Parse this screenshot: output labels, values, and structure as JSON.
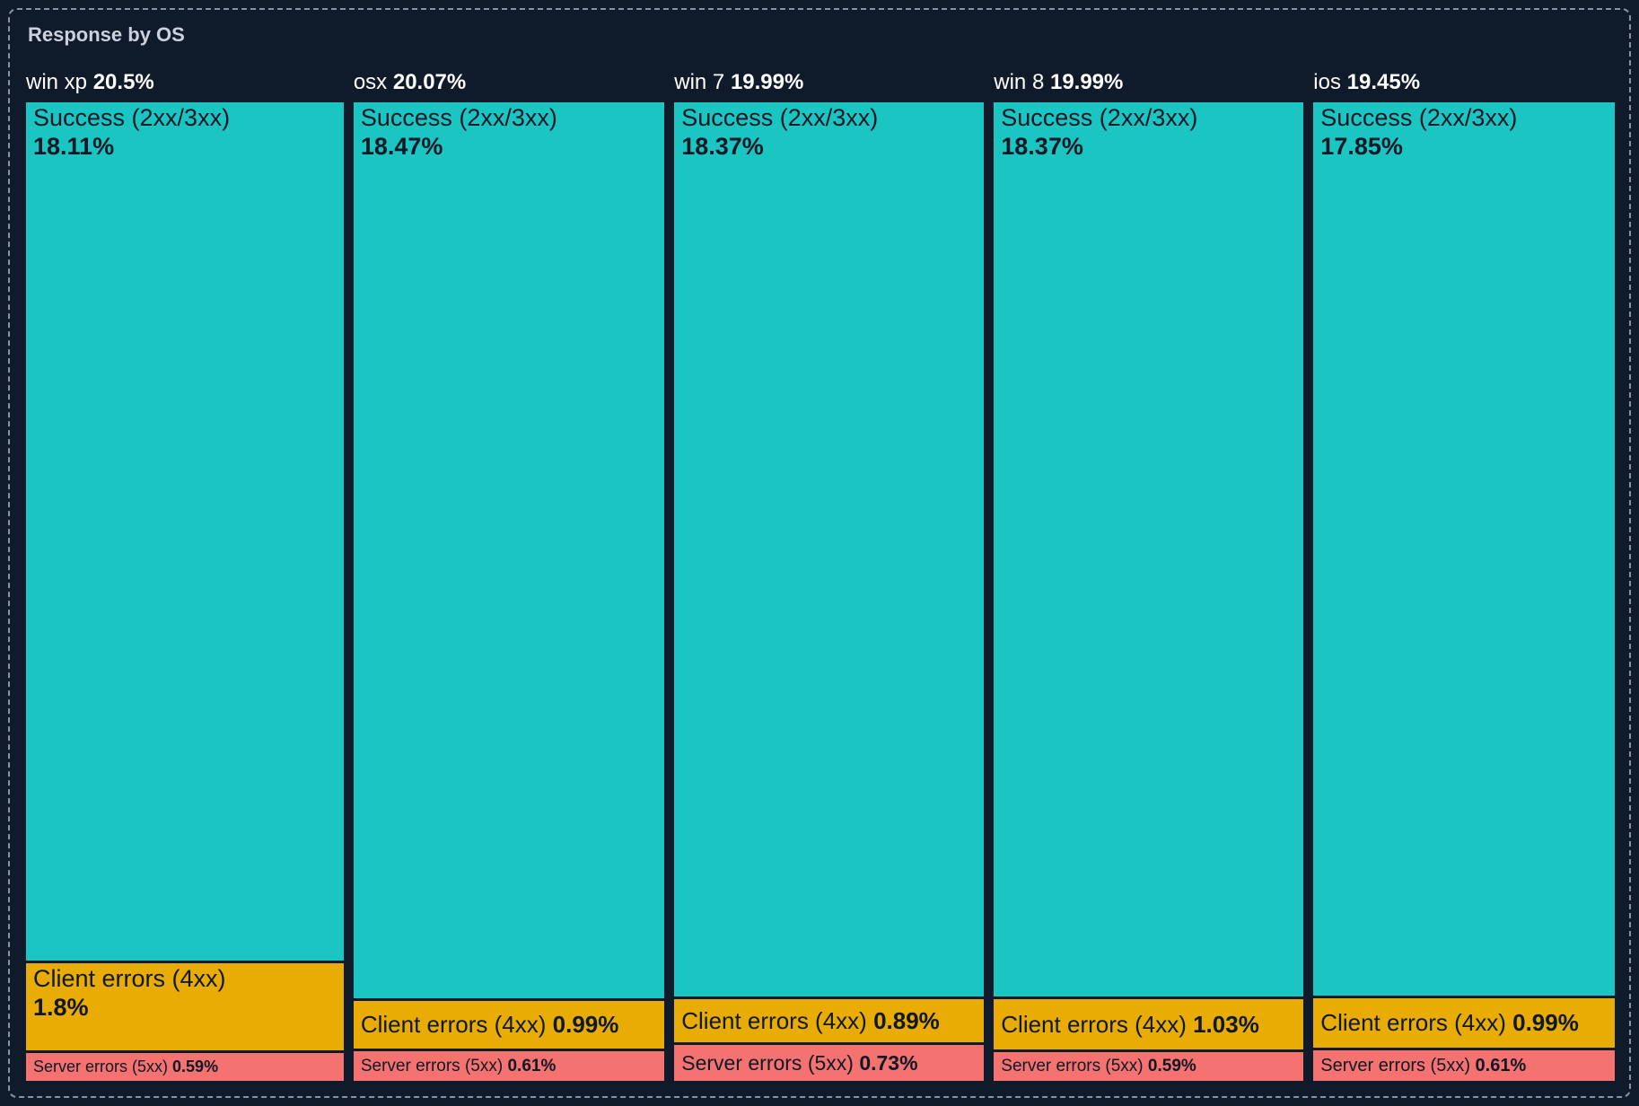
{
  "panel": {
    "title": "Response by OS",
    "background": "#0f1a2a",
    "border_color": "#8494ab",
    "title_color": "#ccd2dd"
  },
  "chart_data": {
    "type": "treemap",
    "title": "Response by OS",
    "orientation": "columns",
    "unit": "%",
    "legend": "none",
    "categories": [
      "Success (2xx/3xx)",
      "Client errors (4xx)",
      "Server errors (5xx)"
    ],
    "colors": {
      "success": "#1bc5c2",
      "client": "#e8ac04",
      "server": "#f4726f"
    },
    "text_color": "#0e1826",
    "header_text_color": "#ffffff",
    "groups": [
      {
        "name": "win xp",
        "share_label": "20.5%",
        "value": 20.5,
        "segments": [
          {
            "label": "Success (2xx/3xx)",
            "pct_label": "18.11%",
            "value": 18.11,
            "category": "success"
          },
          {
            "label": "Client errors (4xx)",
            "pct_label": "1.8%",
            "value": 1.8,
            "category": "client"
          },
          {
            "label": "Server errors (5xx)",
            "pct_label": "0.59%",
            "value": 0.59,
            "category": "server"
          }
        ]
      },
      {
        "name": "osx",
        "share_label": "20.07%",
        "value": 20.07,
        "segments": [
          {
            "label": "Success (2xx/3xx)",
            "pct_label": "18.47%",
            "value": 18.47,
            "category": "success"
          },
          {
            "label": "Client errors (4xx)",
            "pct_label": "0.99%",
            "value": 0.99,
            "category": "client"
          },
          {
            "label": "Server errors (5xx)",
            "pct_label": "0.61%",
            "value": 0.61,
            "category": "server"
          }
        ]
      },
      {
        "name": "win 7",
        "share_label": "19.99%",
        "value": 19.99,
        "segments": [
          {
            "label": "Success (2xx/3xx)",
            "pct_label": "18.37%",
            "value": 18.37,
            "category": "success"
          },
          {
            "label": "Client errors (4xx)",
            "pct_label": "0.89%",
            "value": 0.89,
            "category": "client"
          },
          {
            "label": "Server errors (5xx)",
            "pct_label": "0.73%",
            "value": 0.73,
            "category": "server"
          }
        ]
      },
      {
        "name": "win 8",
        "share_label": "19.99%",
        "value": 19.99,
        "segments": [
          {
            "label": "Success (2xx/3xx)",
            "pct_label": "18.37%",
            "value": 18.37,
            "category": "success"
          },
          {
            "label": "Client errors (4xx)",
            "pct_label": "1.03%",
            "value": 1.03,
            "category": "client"
          },
          {
            "label": "Server errors (5xx)",
            "pct_label": "0.59%",
            "value": 0.59,
            "category": "server"
          }
        ]
      },
      {
        "name": "ios",
        "share_label": "19.45%",
        "value": 19.45,
        "segments": [
          {
            "label": "Success (2xx/3xx)",
            "pct_label": "17.85%",
            "value": 17.85,
            "category": "success"
          },
          {
            "label": "Client errors (4xx)",
            "pct_label": "0.99%",
            "value": 0.99,
            "category": "client"
          },
          {
            "label": "Server errors (5xx)",
            "pct_label": "0.61%",
            "value": 0.61,
            "category": "server"
          }
        ]
      }
    ]
  }
}
